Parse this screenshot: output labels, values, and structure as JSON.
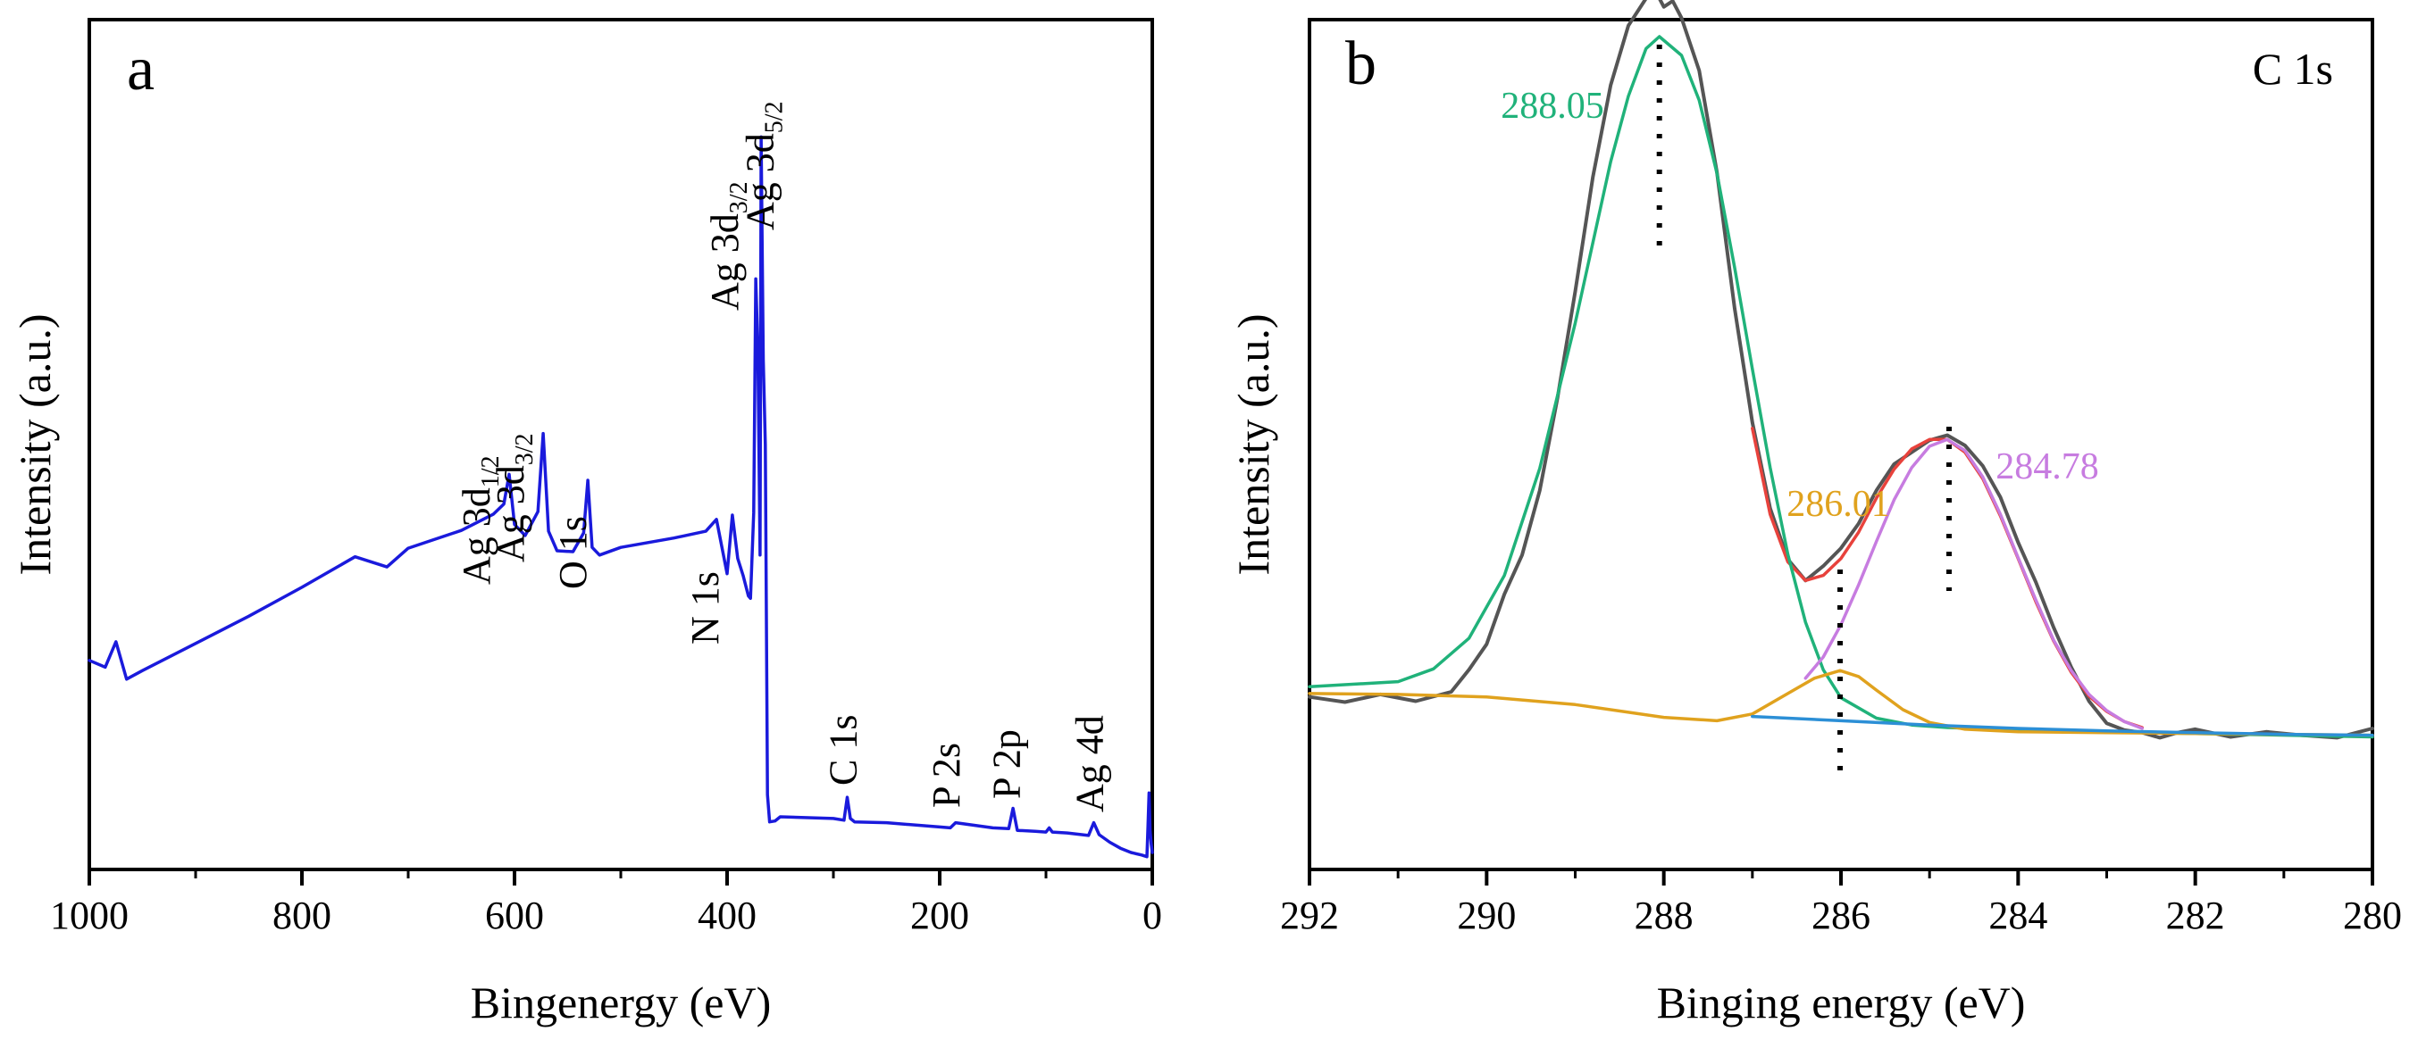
{
  "chart_data": [
    {
      "type": "line",
      "panel_label": "a",
      "xlabel": "Bingenergy (eV)",
      "ylabel": "Intensity (a.u.)",
      "xlim": [
        1000,
        0
      ],
      "x_reversed": true,
      "xticks": [
        1000,
        800,
        600,
        400,
        200,
        0
      ],
      "yticks": [],
      "ylim": [
        0,
        100
      ],
      "grid": false,
      "legend": "none",
      "series": [
        {
          "color": "#1a1adc",
          "x": [
            1000,
            985,
            975,
            965,
            950,
            900,
            850,
            800,
            750,
            720,
            700,
            650,
            620,
            610,
            605,
            600,
            590,
            578,
            573,
            568,
            560,
            545,
            535,
            531,
            527,
            520,
            500,
            450,
            420,
            410,
            400,
            395,
            390,
            385,
            380,
            378,
            375,
            373,
            371,
            369,
            368,
            366,
            364,
            362,
            360,
            355,
            350,
            300,
            290,
            287,
            284,
            280,
            250,
            200,
            190,
            185,
            150,
            135,
            131,
            127,
            110,
            100,
            97,
            94,
            80,
            60,
            55,
            50,
            40,
            30,
            20,
            10,
            5,
            4,
            3,
            2,
            1,
            0
          ],
          "y": [
            24.6,
            23.8,
            26.8,
            22.4,
            23.4,
            26.6,
            29.8,
            33.2,
            36.8,
            35.6,
            37.8,
            39.9,
            41.8,
            43.0,
            46.5,
            40.6,
            39.3,
            42.1,
            51.3,
            39.8,
            37.5,
            37.4,
            39.6,
            45.8,
            37.9,
            37.0,
            37.9,
            39.0,
            39.8,
            41.2,
            34.8,
            41.7,
            36.6,
            34.6,
            32.2,
            31.9,
            42.0,
            69.5,
            61.0,
            37.0,
            86.2,
            60.0,
            50.0,
            8.8,
            5.6,
            5.7,
            6.2,
            6.0,
            5.8,
            8.5,
            6.0,
            5.6,
            5.5,
            5.0,
            4.9,
            5.5,
            4.9,
            4.8,
            7.2,
            4.6,
            4.5,
            4.4,
            4.9,
            4.4,
            4.3,
            4.0,
            5.5,
            4.1,
            3.2,
            2.5,
            2.0,
            1.7,
            1.5,
            5.1,
            9.0,
            4.5,
            3.0,
            2.0
          ]
        }
      ],
      "annotations": [
        {
          "text": "Ag 3d",
          "subscript": "1/2",
          "x": 605
        },
        {
          "text": "Ag 3d",
          "subscript": "3/2",
          "x": 573
        },
        {
          "text": "O 1s",
          "x": 531
        },
        {
          "text": "N 1s",
          "x": 400
        },
        {
          "text": "Ag 3d",
          "subscript": "3/2",
          "x": 373
        },
        {
          "text": "Ag 3d",
          "subscript": "5/2",
          "x": 367
        },
        {
          "text": "C 1s",
          "x": 287
        },
        {
          "text": "P 2s",
          "x": 190
        },
        {
          "text": "P 2p",
          "x": 133
        },
        {
          "text": "Ag 4d",
          "x": 55
        }
      ]
    },
    {
      "type": "line",
      "panel_label": "b",
      "corner_label": "C 1s",
      "xlabel": "Binging energy (eV)",
      "ylabel": "Intensity (a.u.)",
      "xlim": [
        292,
        280
      ],
      "x_reversed": true,
      "xticks": [
        292,
        290,
        288,
        286,
        284,
        282,
        280
      ],
      "yticks": [],
      "ylim": [
        0,
        100
      ],
      "grid": false,
      "legend": "none",
      "series": [
        {
          "role": "raw",
          "color": "#555555",
          "x": [
            292,
            291.6,
            291.2,
            290.8,
            290.4,
            290.2,
            290.0,
            289.8,
            289.6,
            289.4,
            289.2,
            289.0,
            288.8,
            288.6,
            288.4,
            288.2,
            288.1,
            288.0,
            287.9,
            287.8,
            287.6,
            287.4,
            287.2,
            287.0,
            286.8,
            286.6,
            286.4,
            286.2,
            286.0,
            285.8,
            285.6,
            285.4,
            285.2,
            285.0,
            284.8,
            284.6,
            284.4,
            284.2,
            284.0,
            283.8,
            283.6,
            283.4,
            283.2,
            283.0,
            282.8,
            282.6,
            282.4,
            282.2,
            282.0,
            281.6,
            281.2,
            280.8,
            280.4,
            280.0
          ],
          "y": [
            20.3,
            19.7,
            20.6,
            19.8,
            20.9,
            23.5,
            26.5,
            32.4,
            37.0,
            44.6,
            55.5,
            68.0,
            81.5,
            92.3,
            99.3,
            102.5,
            103.5,
            101.5,
            102.2,
            100.2,
            94.0,
            82.0,
            66.0,
            52.6,
            42.5,
            36.5,
            34.0,
            35.7,
            37.8,
            40.7,
            44.6,
            47.7,
            49.1,
            50.5,
            51.1,
            49.9,
            47.5,
            43.8,
            38.5,
            33.8,
            28.5,
            23.8,
            19.8,
            17.2,
            16.4,
            16.1,
            15.5,
            16.1,
            16.5,
            15.6,
            16.2,
            15.8,
            15.5,
            16.6
          ]
        },
        {
          "role": "envelope",
          "color": "#e8423c",
          "x": [
            287.0,
            286.8,
            286.6,
            286.4,
            286.2,
            286.0,
            285.8,
            285.6,
            285.4,
            285.2,
            285.0,
            284.8,
            284.6,
            284.4,
            284.2,
            284.0,
            283.8,
            283.6,
            283.4,
            283.2,
            283.0,
            282.8,
            282.6
          ],
          "y": [
            51.9,
            41.8,
            36.2,
            34.0,
            34.6,
            36.6,
            39.7,
            43.7,
            47.1,
            49.5,
            50.6,
            50.6,
            49.1,
            46.0,
            41.6,
            36.6,
            31.5,
            26.9,
            23.2,
            20.4,
            18.6,
            17.4,
            16.7
          ]
        },
        {
          "role": "peak",
          "name_on_chart": "288.05",
          "color": "#20b27a",
          "x": [
            292,
            291.0,
            290.6,
            290.2,
            289.8,
            289.4,
            289.0,
            288.6,
            288.4,
            288.2,
            288.05,
            287.8,
            287.6,
            287.4,
            287.2,
            287.0,
            286.8,
            286.6,
            286.4,
            286.2,
            286.0,
            285.6,
            285.2,
            284.8,
            284.0,
            283.0,
            282.0,
            280.0
          ],
          "y": [
            21.5,
            22.1,
            23.6,
            27.2,
            34.6,
            47.2,
            64.3,
            83.3,
            91.0,
            96.6,
            98.0,
            95.8,
            90.5,
            81.9,
            70.8,
            58.9,
            47.3,
            37.1,
            29.1,
            23.5,
            20.2,
            17.8,
            17.0,
            16.7,
            16.4,
            16.2,
            16.0,
            15.6
          ]
        },
        {
          "role": "peak",
          "name_on_chart": "286.01",
          "color": "#e0a21e",
          "x": [
            292,
            291.0,
            290.0,
            289.0,
            288.0,
            287.4,
            287.0,
            286.6,
            286.3,
            286.01,
            285.8,
            285.6,
            285.3,
            285.0,
            284.6,
            284.0,
            283.0,
            282.0,
            281.0,
            280.0
          ],
          "y": [
            20.7,
            20.6,
            20.3,
            19.4,
            17.9,
            17.5,
            18.3,
            20.7,
            22.5,
            23.4,
            22.7,
            21.1,
            18.8,
            17.3,
            16.5,
            16.2,
            16.1,
            16.0,
            15.9,
            15.8
          ]
        },
        {
          "role": "peak",
          "name_on_chart": "284.78",
          "color": "#c77ce0",
          "x": [
            286.4,
            286.2,
            286.0,
            285.8,
            285.6,
            285.4,
            285.2,
            285.0,
            284.8,
            284.6,
            284.4,
            284.2,
            284.0,
            283.8,
            283.6,
            283.4,
            283.2,
            283.0,
            282.8,
            282.6
          ],
          "y": [
            22.5,
            25.0,
            28.8,
            33.5,
            38.6,
            43.5,
            47.3,
            49.8,
            50.6,
            49.3,
            46.2,
            41.8,
            36.7,
            31.7,
            27.0,
            23.4,
            20.6,
            18.7,
            17.4,
            16.6
          ]
        },
        {
          "role": "baseline",
          "color": "#2c8fd6",
          "x": [
            287.0,
            286.0,
            285.0,
            284.0,
            283.0,
            282.0,
            281.0,
            280.0
          ],
          "y": [
            18.0,
            17.5,
            17.0,
            16.6,
            16.3,
            16.1,
            15.9,
            15.8
          ]
        }
      ],
      "annotations": [
        {
          "text": "288.05",
          "x": 288.05,
          "color": "#20b27a"
        },
        {
          "text": "286.01",
          "x": 286.01,
          "color": "#e0a21e"
        },
        {
          "text": "284.78",
          "x": 284.78,
          "color": "#c77ce0"
        }
      ]
    }
  ]
}
